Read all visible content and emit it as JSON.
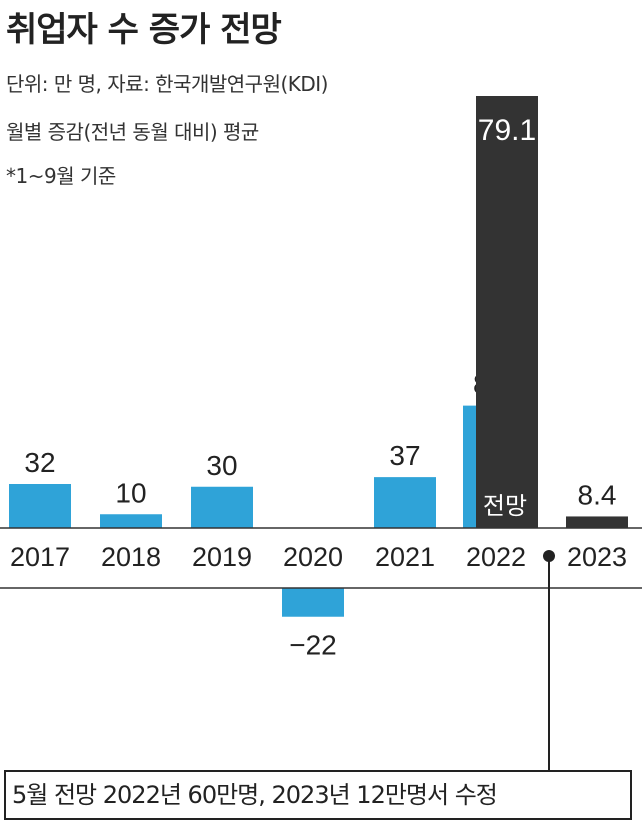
{
  "title": "취업자 수 증가 전망",
  "meta": {
    "unit_source": "단위: 만 명, 자료: 한국개발연구원(KDI)",
    "measure": "월별 증감(전년 동월 대비) 평균",
    "note": "*1~9월 기준"
  },
  "colors": {
    "actual": "#2fa3d8",
    "forecast": "#333333",
    "text": "#222222"
  },
  "chart_data": {
    "type": "bar",
    "categories": [
      "2017",
      "2018",
      "2019",
      "2020",
      "2021",
      "2022",
      "2023"
    ],
    "series": [
      {
        "values": [
          32,
          10,
          30,
          -22,
          37,
          89,
          null
        ],
        "value_labels": [
          "32",
          "10",
          "30",
          "−22",
          "37",
          "89*",
          ""
        ]
      },
      {
        "values": [
          null,
          null,
          null,
          null,
          null,
          79.1,
          8.4
        ],
        "value_labels": [
          "",
          "",
          "",
          "",
          "",
          "79.1",
          "8.4"
        ]
      }
    ],
    "annotations": {
      "forecast_label": "전망"
    },
    "title": "취업자 수 증가 전망",
    "xlabel": "",
    "ylabel": "",
    "ylim": [
      -22,
      89
    ]
  },
  "footnote": "5월 전망 2022년 60만명, 2023년 12만명서 수정"
}
